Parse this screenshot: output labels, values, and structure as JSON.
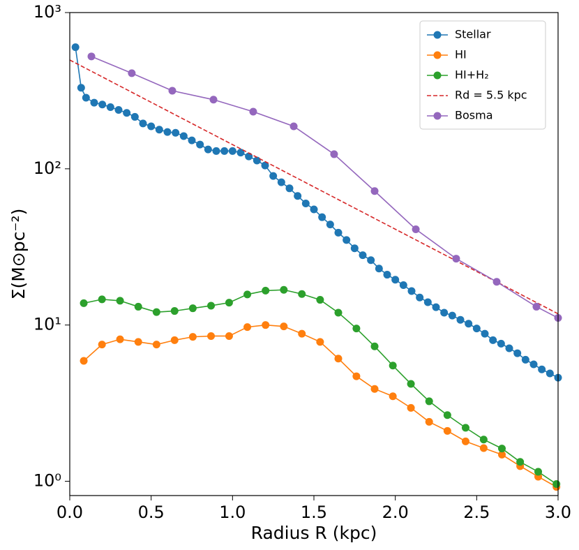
{
  "chart_data": {
    "type": "line",
    "xlabel": "Radius R (kpc)",
    "ylabel": "Σ(M⊙pc⁻²)",
    "xlim": [
      0.0,
      3.0
    ],
    "ylim": [
      0.81,
      1000
    ],
    "yscale": "log",
    "xticks": [
      {
        "value": 0,
        "label": "0.0"
      },
      0.5,
      {
        "value": 1,
        "label": "1.0"
      },
      1.5,
      {
        "value": 2,
        "label": "2.0"
      },
      2.5,
      {
        "value": 3,
        "label": "3.0"
      }
    ],
    "yticks": [
      {
        "value": 1,
        "label": "10⁰"
      },
      {
        "value": 10,
        "label": "10¹"
      },
      {
        "value": 100,
        "label": "10²"
      },
      {
        "value": 1000,
        "label": "10³"
      }
    ],
    "legend": "upper right",
    "series": [
      {
        "name": "Stellar",
        "color": "#1f77b4",
        "linestyle": "solid",
        "marker": true,
        "x": [
          0.035,
          0.07,
          0.1,
          0.15,
          0.2,
          0.25,
          0.3,
          0.35,
          0.4,
          0.45,
          0.5,
          0.55,
          0.6,
          0.65,
          0.7,
          0.75,
          0.8,
          0.85,
          0.9,
          0.95,
          1.0,
          1.05,
          1.1,
          1.15,
          1.2,
          1.25,
          1.3,
          1.35,
          1.4,
          1.45,
          1.5,
          1.55,
          1.6,
          1.65,
          1.7,
          1.75,
          1.8,
          1.85,
          1.9,
          1.95,
          2.0,
          2.05,
          2.1,
          2.15,
          2.2,
          2.25,
          2.3,
          2.35,
          2.4,
          2.45,
          2.5,
          2.55,
          2.6,
          2.65,
          2.7,
          2.75,
          2.8,
          2.85,
          2.9,
          2.95,
          3.0
        ],
        "values": [
          600,
          330,
          285,
          265,
          258,
          248,
          238,
          228,
          215,
          195,
          187,
          178,
          172,
          170,
          162,
          152,
          143,
          133,
          130,
          130,
          130,
          127,
          120,
          113,
          105,
          90,
          82,
          75,
          67,
          60,
          55,
          49,
          44,
          39,
          35,
          31,
          28,
          26,
          23,
          21,
          19.5,
          18,
          16.5,
          15,
          14,
          13,
          12,
          11.5,
          10.8,
          10.2,
          9.5,
          8.8,
          8,
          7.6,
          7.1,
          6.6,
          6,
          5.6,
          5.2,
          4.9,
          4.6
        ]
      },
      {
        "name": "HI",
        "color": "#ff7f0e",
        "linestyle": "solid",
        "marker": true,
        "x": [
          0.086,
          0.198,
          0.309,
          0.421,
          0.533,
          0.644,
          0.756,
          0.868,
          0.979,
          1.091,
          1.203,
          1.315,
          1.426,
          1.538,
          1.65,
          1.761,
          1.873,
          1.985,
          2.096,
          2.208,
          2.32,
          2.432,
          2.543,
          2.655,
          2.767,
          2.878,
          2.99
        ],
        "values": [
          5.9,
          7.5,
          8.1,
          7.8,
          7.5,
          8.0,
          8.4,
          8.5,
          8.5,
          9.7,
          10,
          9.8,
          8.8,
          7.8,
          6.1,
          4.7,
          3.9,
          3.5,
          2.95,
          2.4,
          2.1,
          1.8,
          1.63,
          1.48,
          1.25,
          1.07,
          0.92
        ]
      },
      {
        "name": "HI+H₂",
        "color": "#2ca02c",
        "linestyle": "solid",
        "marker": true,
        "x": [
          0.086,
          0.198,
          0.309,
          0.421,
          0.533,
          0.644,
          0.756,
          0.868,
          0.979,
          1.091,
          1.203,
          1.315,
          1.426,
          1.538,
          1.65,
          1.761,
          1.873,
          1.985,
          2.096,
          2.208,
          2.32,
          2.432,
          2.543,
          2.655,
          2.767,
          2.878,
          2.99
        ],
        "values": [
          13.8,
          14.6,
          14.3,
          13.1,
          12.1,
          12.3,
          12.8,
          13.3,
          13.9,
          15.7,
          16.6,
          16.8,
          15.8,
          14.5,
          12,
          9.5,
          7.3,
          5.5,
          4.2,
          3.25,
          2.65,
          2.2,
          1.85,
          1.62,
          1.33,
          1.15,
          0.96
        ]
      },
      {
        "name": "Rd = 5.5 kpc",
        "color": "#d62728",
        "linestyle": "dashed",
        "marker": false,
        "x": [
          0.0,
          3.0
        ],
        "values": [
          497,
          11.8
        ]
      },
      {
        "name": "Bosma",
        "color": "#9467bd",
        "linestyle": "solid",
        "marker": true,
        "x": [
          0.133,
          0.381,
          0.63,
          0.883,
          1.127,
          1.376,
          1.624,
          1.873,
          2.126,
          2.374,
          2.623,
          2.867,
          3.0
        ],
        "values": [
          524,
          409,
          316,
          277,
          232,
          187,
          124,
          72,
          41,
          26.6,
          18.9,
          13.1,
          11.1
        ]
      }
    ]
  }
}
